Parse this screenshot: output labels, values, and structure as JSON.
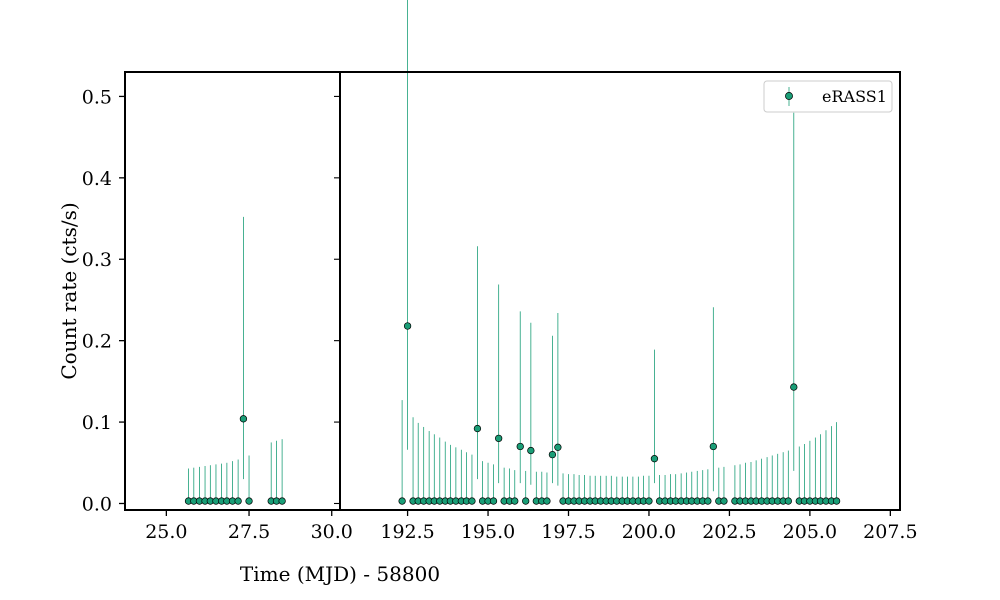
{
  "chart_data": {
    "type": "scatter",
    "title": "",
    "xlabel": "Time (MJD) - 58800",
    "ylabel": "Count rate (cts/s)",
    "legend": {
      "position": "top-right",
      "entries": [
        "eRASS1"
      ]
    },
    "grid": false,
    "colors": {
      "marker": "#1a9e77",
      "errorbar": "#1a9e77",
      "marker_edge": "#000000"
    },
    "y_axis": {
      "ylim": [
        -0.008,
        0.53
      ],
      "ticks": [
        0.0,
        0.1,
        0.2,
        0.3,
        0.4,
        0.5
      ],
      "tick_labels": [
        "0.0",
        "0.1",
        "0.2",
        "0.3",
        "0.4",
        "0.5"
      ]
    },
    "panels": [
      {
        "xlim": [
          23.75,
          30.25
        ],
        "ticks": [
          25.0,
          27.5,
          30.0
        ],
        "tick_labels": [
          "25.0",
          "27.5",
          "30.0"
        ],
        "series": [
          {
            "name": "eRASS1",
            "x": [
              25.67,
              25.83,
              26.0,
              26.17,
              26.33,
              26.5,
              26.67,
              26.83,
              27.0,
              27.17,
              27.33,
              27.5,
              28.17,
              28.33,
              28.5
            ],
            "y": [
              0.003,
              0.003,
              0.003,
              0.003,
              0.003,
              0.003,
              0.003,
              0.003,
              0.003,
              0.003,
              0.104,
              0.003,
              0.003,
              0.003,
              0.003
            ],
            "y_err_low": [
              0.003,
              0.003,
              0.003,
              0.003,
              0.003,
              0.003,
              0.003,
              0.003,
              0.003,
              0.003,
              0.074,
              0.003,
              0.003,
              0.003,
              0.003
            ],
            "y_err_high": [
              0.04,
              0.041,
              0.042,
              0.043,
              0.044,
              0.045,
              0.046,
              0.047,
              0.049,
              0.051,
              0.248,
              0.056,
              0.072,
              0.074,
              0.076
            ]
          }
        ]
      },
      {
        "xlim": [
          190.4,
          207.8
        ],
        "ticks": [
          192.5,
          195.0,
          197.5,
          200.0,
          202.5,
          205.0,
          207.5
        ],
        "tick_labels": [
          "192.5",
          "195.0",
          "197.5",
          "200.0",
          "202.5",
          "205.0",
          "207.5"
        ],
        "series": [
          {
            "name": "eRASS1",
            "x": [
              192.33,
              192.5,
              192.67,
              192.83,
              193.0,
              193.17,
              193.33,
              193.5,
              193.67,
              193.83,
              194.0,
              194.17,
              194.33,
              194.5,
              194.67,
              194.83,
              195.0,
              195.17,
              195.33,
              195.5,
              195.67,
              195.83,
              196.0,
              196.17,
              196.33,
              196.5,
              196.67,
              196.83,
              197.0,
              197.17,
              197.33,
              197.5,
              197.67,
              197.83,
              198.0,
              198.17,
              198.33,
              198.5,
              198.67,
              198.83,
              199.0,
              199.17,
              199.33,
              199.5,
              199.67,
              199.83,
              200.0,
              200.17,
              200.33,
              200.5,
              200.67,
              200.83,
              201.0,
              201.17,
              201.33,
              201.5,
              201.67,
              201.83,
              202.0,
              202.17,
              202.33,
              202.67,
              202.83,
              203.0,
              203.17,
              203.33,
              203.5,
              203.67,
              203.83,
              204.0,
              204.17,
              204.33,
              204.5,
              204.67,
              204.83,
              205.0,
              205.17,
              205.33,
              205.5,
              205.67,
              205.83
            ],
            "y": [
              0.003,
              0.218,
              0.003,
              0.003,
              0.003,
              0.003,
              0.003,
              0.003,
              0.003,
              0.003,
              0.003,
              0.003,
              0.003,
              0.003,
              0.092,
              0.003,
              0.003,
              0.003,
              0.08,
              0.003,
              0.003,
              0.003,
              0.07,
              0.003,
              0.065,
              0.003,
              0.003,
              0.003,
              0.06,
              0.069,
              0.003,
              0.003,
              0.003,
              0.003,
              0.003,
              0.003,
              0.003,
              0.003,
              0.003,
              0.003,
              0.003,
              0.003,
              0.003,
              0.003,
              0.003,
              0.003,
              0.003,
              0.055,
              0.003,
              0.003,
              0.003,
              0.003,
              0.003,
              0.003,
              0.003,
              0.003,
              0.003,
              0.003,
              0.07,
              0.003,
              0.003,
              0.003,
              0.003,
              0.003,
              0.003,
              0.003,
              0.003,
              0.003,
              0.003,
              0.003,
              0.003,
              0.003,
              0.143,
              0.003,
              0.003,
              0.003,
              0.003,
              0.003,
              0.003,
              0.003,
              0.003
            ],
            "y_err_low": [
              0.003,
              0.152,
              0.003,
              0.003,
              0.003,
              0.003,
              0.003,
              0.003,
              0.003,
              0.003,
              0.003,
              0.003,
              0.003,
              0.003,
              0.062,
              0.003,
              0.003,
              0.003,
              0.055,
              0.003,
              0.003,
              0.003,
              0.045,
              0.003,
              0.042,
              0.003,
              0.003,
              0.003,
              0.035,
              0.047,
              0.003,
              0.003,
              0.003,
              0.003,
              0.003,
              0.003,
              0.003,
              0.003,
              0.003,
              0.003,
              0.003,
              0.003,
              0.003,
              0.003,
              0.003,
              0.003,
              0.003,
              0.03,
              0.003,
              0.003,
              0.003,
              0.003,
              0.003,
              0.003,
              0.003,
              0.003,
              0.003,
              0.003,
              0.055,
              0.003,
              0.003,
              0.003,
              0.003,
              0.003,
              0.003,
              0.003,
              0.003,
              0.003,
              0.003,
              0.003,
              0.003,
              0.003,
              0.103,
              0.003,
              0.003,
              0.003,
              0.003,
              0.003,
              0.003,
              0.003,
              0.003
            ],
            "y_err_high": [
              0.124,
              0.521,
              0.103,
              0.096,
              0.091,
              0.086,
              0.082,
              0.078,
              0.073,
              0.069,
              0.066,
              0.063,
              0.06,
              0.057,
              0.224,
              0.049,
              0.047,
              0.045,
              0.189,
              0.041,
              0.04,
              0.038,
              0.166,
              0.037,
              0.157,
              0.036,
              0.036,
              0.035,
              0.146,
              0.165,
              0.034,
              0.033,
              0.033,
              0.032,
              0.032,
              0.031,
              0.031,
              0.031,
              0.031,
              0.031,
              0.03,
              0.03,
              0.03,
              0.03,
              0.03,
              0.031,
              0.031,
              0.134,
              0.032,
              0.032,
              0.033,
              0.033,
              0.034,
              0.035,
              0.036,
              0.037,
              0.038,
              0.039,
              0.171,
              0.041,
              0.042,
              0.044,
              0.045,
              0.047,
              0.048,
              0.05,
              0.052,
              0.054,
              0.056,
              0.058,
              0.06,
              0.062,
              0.337,
              0.067,
              0.07,
              0.074,
              0.078,
              0.082,
              0.087,
              0.092,
              0.097
            ]
          }
        ]
      }
    ]
  }
}
